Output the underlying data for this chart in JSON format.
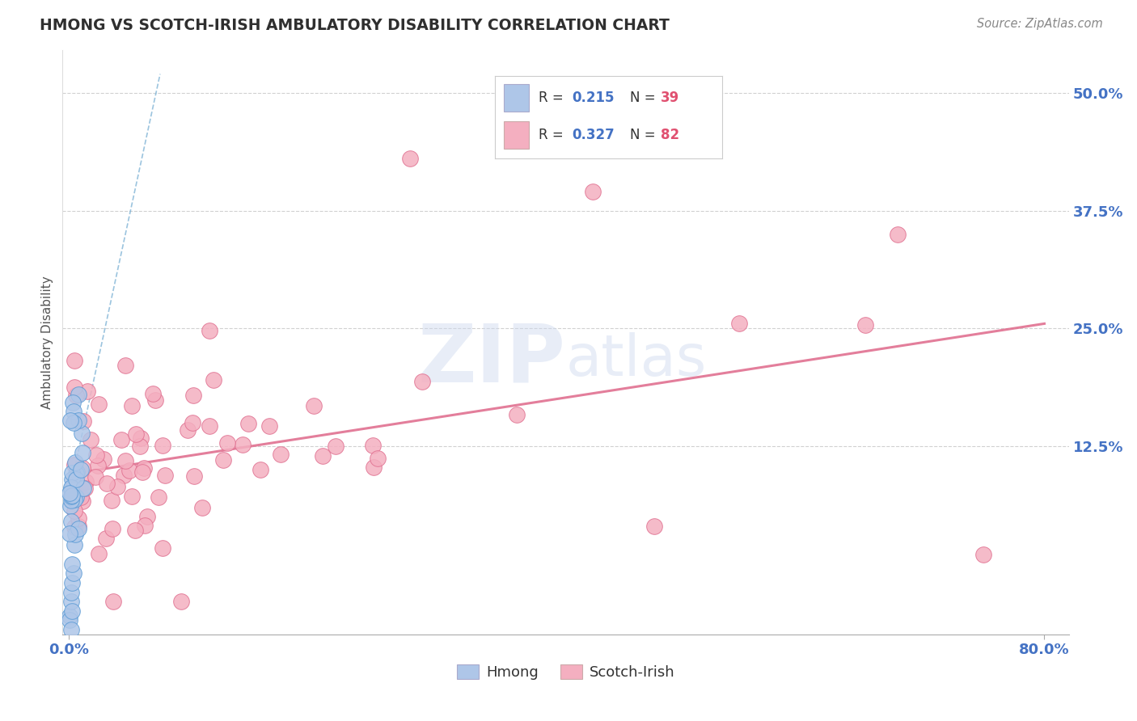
{
  "title": "HMONG VS SCOTCH-IRISH AMBULATORY DISABILITY CORRELATION CHART",
  "source": "Source: ZipAtlas.com",
  "ylabel": "Ambulatory Disability",
  "ytick_labels": [
    "12.5%",
    "25.0%",
    "37.5%",
    "50.0%"
  ],
  "ytick_values": [
    0.125,
    0.25,
    0.375,
    0.5
  ],
  "xtick_labels": [
    "0.0%",
    "80.0%"
  ],
  "xtick_values": [
    0.0,
    0.8
  ],
  "xlim": [
    -0.005,
    0.82
  ],
  "ylim": [
    -0.075,
    0.545
  ],
  "hmong_R": 0.215,
  "hmong_N": 39,
  "scotch_R": 0.327,
  "scotch_N": 82,
  "hmong_color": "#aec6e8",
  "scotch_color": "#f4afc0",
  "hmong_edge_color": "#5b9bd5",
  "scotch_edge_color": "#e07090",
  "hmong_trend_color": "#7ab0d4",
  "scotch_trend_color": "#e07090",
  "title_color": "#2f2f2f",
  "axis_label_color": "#555555",
  "tick_label_color": "#4472c4",
  "grid_color": "#cccccc",
  "background_color": "#ffffff",
  "legend_R_color": "#333333",
  "legend_val_color": "#4472c4",
  "legend_N_color": "#e05070",
  "watermark_color": "#ccd8ee",
  "hmong_trend_x0": -0.002,
  "hmong_trend_x1": 0.075,
  "hmong_trend_y0": 0.06,
  "hmong_trend_y1": 0.52,
  "scotch_trend_x0": 0.0,
  "scotch_trend_x1": 0.8,
  "scotch_trend_y0": 0.095,
  "scotch_trend_y1": 0.255
}
